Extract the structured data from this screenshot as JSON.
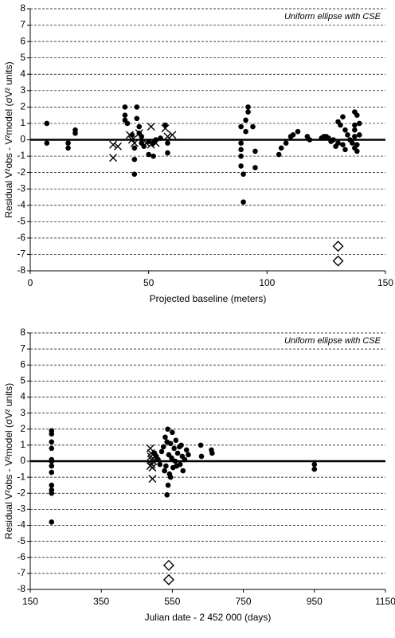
{
  "chart_data": [
    {
      "type": "scatter",
      "x_label": "Projected baseline (meters)",
      "y_label": "Residual V²obs - V²model (σV² units)",
      "annotation": "Uniform ellipse with CSE",
      "xlim": [
        0,
        150
      ],
      "xticks": [
        0,
        50,
        100,
        150
      ],
      "ylim": [
        -8,
        8
      ],
      "yticks": [
        -8,
        -7,
        -6,
        -5,
        -4,
        -3,
        -2,
        -1,
        0,
        1,
        2,
        3,
        4,
        5,
        6,
        7,
        8
      ],
      "grid": true,
      "zero_line": true,
      "series": [
        {
          "marker": "circle",
          "color": "#000000",
          "x": [
            7,
            7,
            16,
            16,
            19,
            19,
            40,
            40,
            40,
            41,
            43,
            44,
            44,
            44,
            45,
            45,
            46,
            46,
            47,
            47,
            48,
            50,
            50,
            52,
            52,
            53,
            55,
            57,
            58,
            58,
            89,
            89,
            89,
            89,
            89,
            90,
            90,
            91,
            91,
            92,
            92,
            94,
            95,
            95,
            105,
            106,
            108,
            110,
            111,
            113,
            117,
            118,
            123,
            124,
            125,
            126,
            127,
            128,
            129,
            130,
            130,
            131,
            132,
            132,
            133,
            133,
            134,
            135,
            136,
            137,
            137,
            137,
            137,
            137,
            138,
            138,
            138,
            139,
            139
          ],
          "values": [
            1.0,
            -0.2,
            -0.2,
            -0.5,
            0.6,
            0.4,
            2.0,
            1.5,
            1.2,
            1.0,
            0.3,
            -0.5,
            -1.2,
            -2.1,
            2.0,
            1.3,
            0.8,
            0.4,
            0.2,
            -0.2,
            -0.4,
            -0.1,
            -0.9,
            -1.0,
            -0.2,
            0.0,
            0.1,
            0.9,
            -0.2,
            -0.8,
            0.8,
            -0.2,
            -0.6,
            -1.0,
            -1.6,
            -2.1,
            -3.8,
            0.5,
            1.2,
            1.7,
            2.0,
            0.8,
            -0.7,
            -1.7,
            -0.9,
            -0.5,
            -0.2,
            0.2,
            0.3,
            0.5,
            0.2,
            0.0,
            0.1,
            0.2,
            0.2,
            0.1,
            -0.1,
            0.0,
            -0.4,
            1.1,
            -0.2,
            0.9,
            1.4,
            -0.3,
            0.6,
            -0.6,
            0.3,
            0.0,
            -0.2,
            1.7,
            0.9,
            0.6,
            0.2,
            -0.5,
            1.5,
            -0.3,
            -0.7,
            1.0,
            0.3
          ]
        },
        {
          "marker": "x",
          "color": "#000000",
          "x": [
            35,
            35,
            37,
            42,
            43,
            44,
            46,
            49,
            51,
            51,
            53,
            57,
            58,
            60
          ],
          "values": [
            -0.3,
            -1.1,
            -0.4,
            0.3,
            0.0,
            -0.2,
            0.4,
            -0.2,
            0.8,
            -0.3,
            -0.2,
            0.7,
            0.2,
            0.3
          ]
        },
        {
          "marker": "diamond",
          "color": "#000000",
          "x": [
            130,
            130
          ],
          "values": [
            -6.5,
            -7.4
          ]
        }
      ]
    },
    {
      "type": "scatter",
      "x_label": "Julian date - 2 452 000 (days)",
      "y_label": "Residual V²obs - V²model (σV² units)",
      "annotation": "Uniform ellipse with CSE",
      "xlim": [
        150,
        1150
      ],
      "xticks": [
        150,
        350,
        550,
        750,
        950,
        1150
      ],
      "ylim": [
        -8,
        8
      ],
      "yticks": [
        -8,
        -7,
        -6,
        -5,
        -4,
        -3,
        -2,
        -1,
        0,
        1,
        2,
        3,
        4,
        5,
        6,
        7,
        8
      ],
      "grid": true,
      "zero_line": true,
      "series": [
        {
          "marker": "circle",
          "color": "#000000",
          "x": [
            210,
            210,
            210,
            210,
            210,
            210,
            210,
            210,
            210,
            210,
            210,
            210,
            500,
            505,
            510,
            515,
            520,
            525,
            528,
            530,
            532,
            535,
            535,
            537,
            538,
            540,
            542,
            545,
            545,
            548,
            550,
            552,
            555,
            558,
            560,
            562,
            565,
            570,
            572,
            575,
            578,
            580,
            585,
            590,
            595,
            630,
            632,
            660,
            662,
            950,
            950
          ],
          "values": [
            1.9,
            1.7,
            1.2,
            0.8,
            0.1,
            0.0,
            -0.3,
            -0.7,
            -1.5,
            -1.8,
            -2.0,
            -3.8,
            0.5,
            0.3,
            0.1,
            -0.2,
            0.6,
            0.9,
            -0.6,
            1.5,
            -0.3,
            1.2,
            -2.1,
            2.0,
            -1.5,
            0.4,
            -0.8,
            1.1,
            -1.0,
            0.2,
            1.8,
            -0.4,
            0.8,
            0.0,
            1.3,
            -0.3,
            0.5,
            0.9,
            -0.2,
            1.0,
            0.3,
            -0.6,
            0.1,
            0.7,
            0.4,
            1.0,
            0.3,
            0.7,
            0.5,
            -0.2,
            -0.5
          ]
        },
        {
          "marker": "x",
          "color": "#000000",
          "x": [
            488,
            490,
            490,
            492,
            492,
            494,
            494,
            496,
            488
          ],
          "values": [
            0.8,
            0.5,
            0.3,
            0.1,
            -0.2,
            -0.4,
            -1.1,
            0.0,
            -0.3
          ]
        },
        {
          "marker": "diamond",
          "color": "#000000",
          "x": [
            540,
            540
          ],
          "values": [
            -6.5,
            -7.4
          ]
        }
      ]
    }
  ]
}
